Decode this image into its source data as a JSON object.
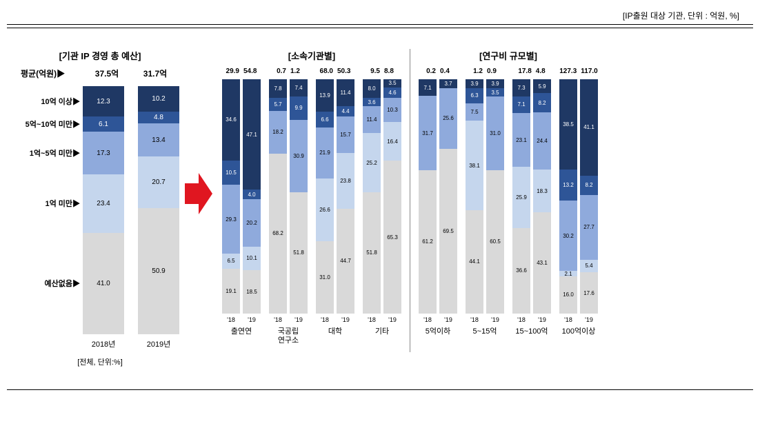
{
  "header": "[IP출원 대상 기관, 단위 : 억원, %]",
  "colors": {
    "seg0": "#1f3864",
    "seg1": "#2e5597",
    "seg2": "#8faadc",
    "seg3": "#c5d6ed",
    "seg4": "#d9d9d9"
  },
  "categories": [
    "10억 이상▶",
    "5억~10억 미만▶",
    "1억~5억 미만▶",
    "1억 미만▶",
    "예산없음▶"
  ],
  "main": {
    "title": "[기관 IP 경영 총 예산]",
    "avg_label": "평균(억원)▶",
    "sub_label": "[전체, 단위:%]",
    "bars": [
      {
        "year": "2018년",
        "avg": "37.5억",
        "values": [
          12.3,
          6.1,
          17.3,
          23.4,
          41.0
        ]
      },
      {
        "year": "2019년",
        "avg": "31.7억",
        "values": [
          10.2,
          4.8,
          13.4,
          20.7,
          50.9
        ]
      }
    ]
  },
  "small_panels": [
    {
      "title": "[소속기관별]",
      "groups": [
        {
          "name": "출연연",
          "bars": [
            {
              "year": "'18",
              "avg": "29.9",
              "values": [
                34.6,
                10.5,
                29.3,
                6.5,
                19.1
              ]
            },
            {
              "year": "'19",
              "avg": "54.8",
              "values": [
                47.1,
                4.0,
                20.2,
                10.1,
                18.5
              ]
            }
          ]
        },
        {
          "name": "국공립\n연구소",
          "bars": [
            {
              "year": "'18",
              "avg": "0.7",
              "values": [
                7.8,
                5.7,
                18.2,
                0,
                68.2
              ]
            },
            {
              "year": "'19",
              "avg": "1.2",
              "values": [
                7.4,
                9.9,
                30.9,
                0,
                51.8
              ]
            }
          ]
        },
        {
          "name": "대학",
          "bars": [
            {
              "year": "'18",
              "avg": "68.0",
              "values": [
                13.9,
                6.6,
                21.9,
                26.6,
                31.0
              ]
            },
            {
              "year": "'19",
              "avg": "50.3",
              "values": [
                11.4,
                4.4,
                15.7,
                23.8,
                44.7
              ]
            }
          ]
        },
        {
          "name": "기타",
          "bars": [
            {
              "year": "'18",
              "avg": "9.5",
              "values": [
                8.0,
                3.6,
                11.4,
                25.2,
                51.8
              ]
            },
            {
              "year": "'19",
              "avg": "8.8",
              "values": [
                3.5,
                4.6,
                10.3,
                16.4,
                65.3
              ]
            }
          ]
        }
      ]
    },
    {
      "title": "[연구비 규모별]",
      "groups": [
        {
          "name": "5억이하",
          "bars": [
            {
              "year": "'18",
              "avg": "0.2",
              "values": [
                7.1,
                0,
                31.7,
                0,
                61.2
              ]
            },
            {
              "year": "'19",
              "avg": "0.4",
              "values": [
                3.7,
                0,
                25.6,
                0,
                69.5
              ]
            }
          ]
        },
        {
          "name": "5~15억",
          "bars": [
            {
              "year": "'18",
              "avg": "1.2",
              "values": [
                3.9,
                6.3,
                7.5,
                38.1,
                44.1
              ]
            },
            {
              "year": "'19",
              "avg": "0.9",
              "values": [
                3.9,
                3.5,
                31.0,
                0,
                60.5
              ]
            }
          ]
        },
        {
          "name": "15~100억",
          "bars": [
            {
              "year": "'18",
              "avg": "17.8",
              "values": [
                7.3,
                7.1,
                23.1,
                25.9,
                36.6
              ]
            },
            {
              "year": "'19",
              "avg": "4.8",
              "values": [
                5.9,
                8.2,
                24.4,
                18.3,
                43.1
              ]
            }
          ]
        },
        {
          "name": "100억이상",
          "bars": [
            {
              "year": "'18",
              "avg": "127.3",
              "values": [
                38.5,
                13.2,
                30.2,
                2.1,
                16.0
              ]
            },
            {
              "year": "'19",
              "avg": "117.0",
              "values": [
                41.1,
                8.2,
                27.7,
                5.4,
                17.6
              ]
            }
          ]
        }
      ]
    }
  ]
}
